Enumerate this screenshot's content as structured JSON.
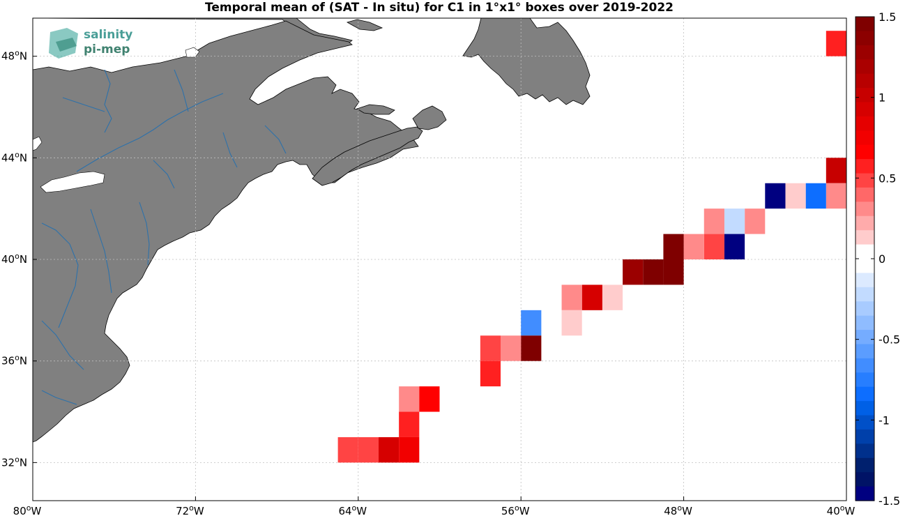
{
  "title": "Temporal mean of (SAT - In situ) for C1 in 1°x1° boxes over 2019-2022",
  "logo": {
    "line1": "salinity",
    "line2": "pi-mep"
  },
  "map": {
    "projection": "equirectangular",
    "lon_range": [
      -80,
      -40
    ],
    "lat_range": [
      30.5,
      49.5
    ],
    "land_color": "#808080",
    "ocean_color": "#ffffff",
    "river_color": "#1f6fb2",
    "grid": true
  },
  "axes": {
    "x_ticks": [
      {
        "value": -80,
        "deg": "80",
        "hemi": "W"
      },
      {
        "value": -72,
        "deg": "72",
        "hemi": "W"
      },
      {
        "value": -64,
        "deg": "64",
        "hemi": "W"
      },
      {
        "value": -56,
        "deg": "56",
        "hemi": "W"
      },
      {
        "value": -48,
        "deg": "48",
        "hemi": "W"
      },
      {
        "value": -40,
        "deg": "40",
        "hemi": "W"
      }
    ],
    "y_ticks": [
      {
        "value": 32,
        "deg": "32",
        "hemi": "N"
      },
      {
        "value": 36,
        "deg": "36",
        "hemi": "N"
      },
      {
        "value": 40,
        "deg": "40",
        "hemi": "N"
      },
      {
        "value": 44,
        "deg": "44",
        "hemi": "N"
      },
      {
        "value": 48,
        "deg": "48",
        "hemi": "N"
      }
    ]
  },
  "colorbar": {
    "min": -1.5,
    "max": 1.5,
    "ticks": [
      {
        "value": 1.5,
        "label": "1.5"
      },
      {
        "value": 1,
        "label": "1"
      },
      {
        "value": 0.5,
        "label": "0.5"
      },
      {
        "value": 0,
        "label": "0"
      },
      {
        "value": -0.5,
        "label": "-0.5"
      },
      {
        "value": -1,
        "label": "-1"
      },
      {
        "value": -1.5,
        "label": "-1.5"
      }
    ],
    "colors_top_to_bottom": [
      "#7f0000",
      "#8c0000",
      "#9b0000",
      "#aa0000",
      "#b80000",
      "#c70000",
      "#d60000",
      "#e50000",
      "#f20000",
      "#ff0000",
      "#ff2020",
      "#ff4444",
      "#ff6868",
      "#ff8a8a",
      "#ffabab",
      "#ffcccc",
      "#ffffff",
      "#ffffff",
      "#dceaff",
      "#c2dbff",
      "#a8cbff",
      "#8fbcff",
      "#75acff",
      "#5b9dff",
      "#418dff",
      "#277eff",
      "#0d6eff",
      "#0060e6",
      "#0050c8",
      "#0040aa",
      "#00308c",
      "#00206e",
      "#001366",
      "#000080"
    ]
  },
  "chart_data": {
    "type": "heatmap",
    "title": "Temporal mean of (SAT - In situ) for C1 in 1°x1° boxes over 2019-2022",
    "cell_size_deg": 1,
    "units": "",
    "cells": [
      {
        "lon": -41,
        "lat": 48,
        "value": 0.55
      },
      {
        "lon": -41,
        "lat": 43,
        "value": 1.0
      },
      {
        "lon": -41,
        "lat": 42,
        "value": 0.3
      },
      {
        "lon": -42,
        "lat": 42,
        "value": -0.8
      },
      {
        "lon": -43,
        "lat": 42,
        "value": 0.12
      },
      {
        "lon": -44,
        "lat": 42,
        "value": -1.5
      },
      {
        "lon": -45,
        "lat": 41,
        "value": 0.3
      },
      {
        "lon": -46,
        "lat": 41,
        "value": -0.25
      },
      {
        "lon": -47,
        "lat": 41,
        "value": 0.3
      },
      {
        "lon": -46,
        "lat": 40,
        "value": -1.5
      },
      {
        "lon": -47,
        "lat": 40,
        "value": 0.45
      },
      {
        "lon": -48,
        "lat": 40,
        "value": 0.3
      },
      {
        "lon": -49,
        "lat": 40,
        "value": 1.5
      },
      {
        "lon": -49,
        "lat": 39,
        "value": 1.5
      },
      {
        "lon": -50,
        "lat": 39,
        "value": 1.5
      },
      {
        "lon": -51,
        "lat": 39,
        "value": 1.3
      },
      {
        "lon": -52,
        "lat": 38,
        "value": 0.12
      },
      {
        "lon": -53,
        "lat": 38,
        "value": 0.95
      },
      {
        "lon": -54,
        "lat": 38,
        "value": 0.3
      },
      {
        "lon": -54,
        "lat": 37,
        "value": 0.12
      },
      {
        "lon": -56,
        "lat": 37,
        "value": -0.7
      },
      {
        "lon": -56,
        "lat": 36,
        "value": 1.5
      },
      {
        "lon": -57,
        "lat": 36,
        "value": 0.3
      },
      {
        "lon": -58,
        "lat": 36,
        "value": 0.45
      },
      {
        "lon": -58,
        "lat": 35,
        "value": 0.55
      },
      {
        "lon": -62,
        "lat": 34,
        "value": 0.3
      },
      {
        "lon": -61,
        "lat": 34,
        "value": 0.7
      },
      {
        "lon": -62,
        "lat": 33,
        "value": 0.55
      },
      {
        "lon": -62,
        "lat": 32,
        "value": 0.75
      },
      {
        "lon": -63,
        "lat": 32,
        "value": 0.9
      },
      {
        "lon": -64,
        "lat": 32,
        "value": 0.45
      },
      {
        "lon": -65,
        "lat": 32,
        "value": 0.45
      }
    ]
  }
}
